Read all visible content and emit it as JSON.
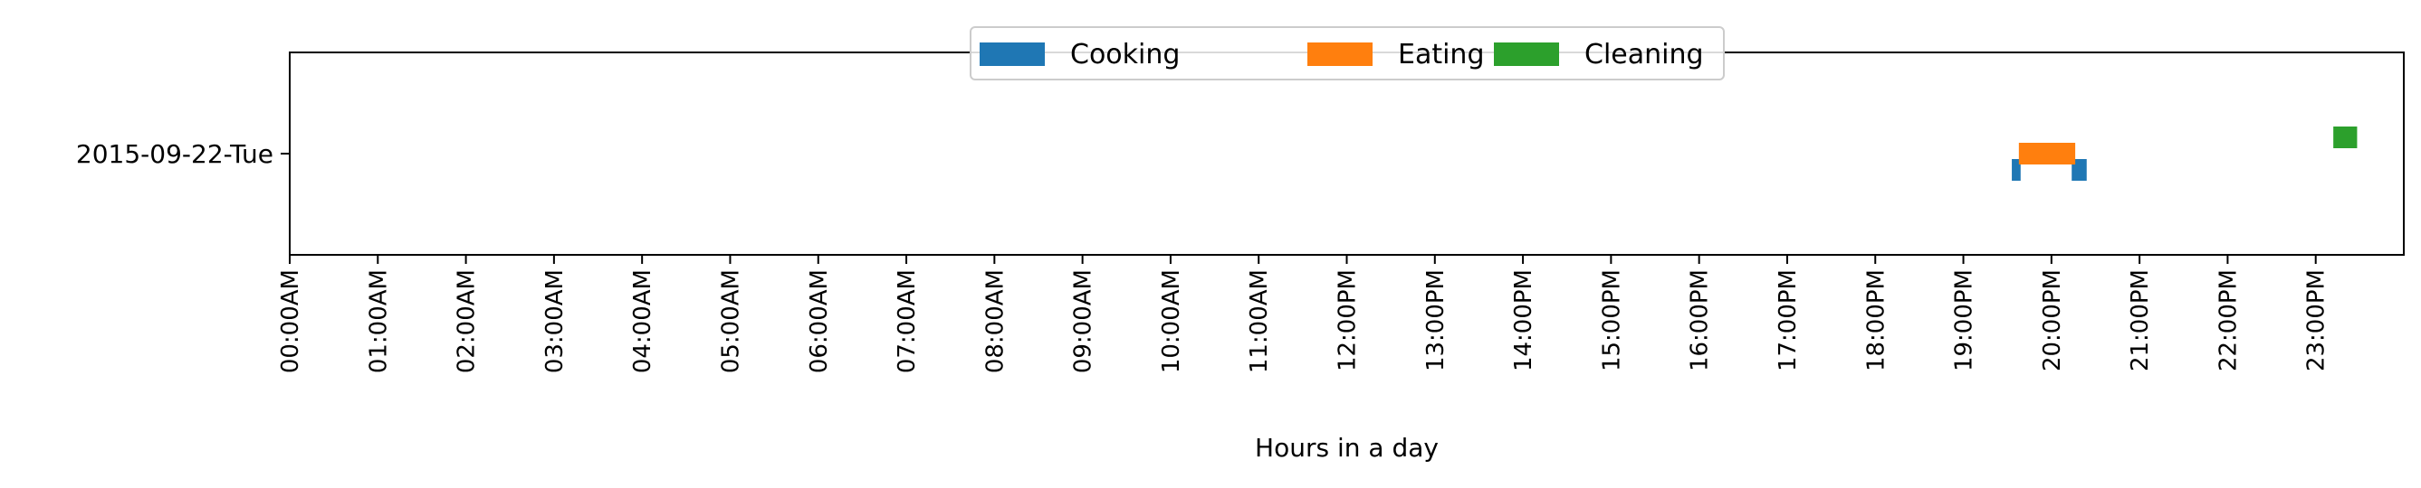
{
  "chart_data": {
    "type": "timeline",
    "title": "",
    "xlabel": "Hours in a day",
    "ylabel": "",
    "xlim": [
      0,
      24
    ],
    "grid": false,
    "legend_position": "top-center",
    "y_categories": [
      "2015-09-22-Tue"
    ],
    "x_tick_labels": [
      "00:00AM",
      "01:00AM",
      "02:00AM",
      "03:00AM",
      "04:00AM",
      "05:00AM",
      "06:00AM",
      "07:00AM",
      "08:00AM",
      "09:00AM",
      "10:00AM",
      "11:00AM",
      "12:00PM",
      "13:00PM",
      "14:00PM",
      "15:00PM",
      "16:00PM",
      "17:00PM",
      "18:00PM",
      "19:00PM",
      "20:00PM",
      "21:00PM",
      "22:00PM",
      "23:00PM"
    ],
    "series": [
      {
        "name": "Cooking",
        "color": "#1f77b4",
        "lane": "lower",
        "intervals": [
          {
            "day": "2015-09-22-Tue",
            "start": 19.55,
            "end": 19.65
          },
          {
            "day": "2015-09-22-Tue",
            "start": 20.23,
            "end": 20.4
          }
        ]
      },
      {
        "name": "Eating",
        "color": "#ff7f0e",
        "lane": "middle",
        "intervals": [
          {
            "day": "2015-09-22-Tue",
            "start": 19.63,
            "end": 20.27
          }
        ]
      },
      {
        "name": "Cleaning",
        "color": "#2ca02c",
        "lane": "upper",
        "intervals": [
          {
            "day": "2015-09-22-Tue",
            "start": 23.2,
            "end": 23.47
          }
        ]
      }
    ]
  }
}
